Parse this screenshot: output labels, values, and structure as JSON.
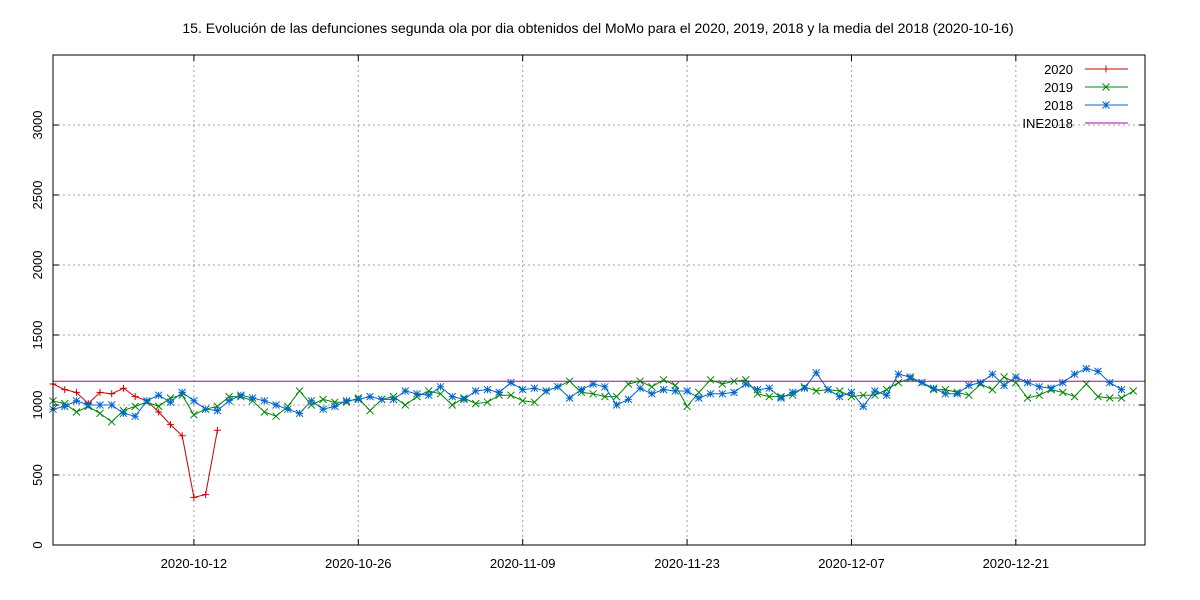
{
  "chart_data": {
    "type": "line",
    "title": "15. Evolución de las defunciones segunda ola por dia obtenidos del MoMo para el 2020, 2019, 2018 y la media del 2018 (2020-10-16)",
    "xlabel": "",
    "ylabel": "",
    "x_start": "2020-09-30",
    "x_end": "2021-01-01",
    "ylim": [
      0,
      3500
    ],
    "yticks": [
      0,
      500,
      1000,
      1500,
      2000,
      2500,
      3000
    ],
    "xtick_labels": [
      "2020-10-12",
      "2020-10-26",
      "2020-11-09",
      "2020-11-23",
      "2020-12-07",
      "2020-12-21"
    ],
    "grid": true,
    "legend_position": "top-right",
    "series": [
      {
        "name": "2020",
        "color": "#cc0000",
        "marker": "plus",
        "start_date": "2020-09-30",
        "values": [
          1150,
          1110,
          1090,
          1010,
          1090,
          1080,
          1120,
          1060,
          1030,
          950,
          860,
          780,
          340,
          360,
          820
        ]
      },
      {
        "name": "2019",
        "color": "#008800",
        "marker": "x",
        "start_date": "2020-09-30",
        "values": [
          1030,
          1010,
          950,
          990,
          940,
          880,
          960,
          990,
          1020,
          990,
          1050,
          1070,
          930,
          970,
          990,
          1060,
          1060,
          1030,
          950,
          920,
          990,
          1100,
          1000,
          1040,
          1020,
          1020,
          1050,
          960,
          1040,
          1060,
          1000,
          1060,
          1100,
          1080,
          1000,
          1050,
          1010,
          1020,
          1070,
          1070,
          1030,
          1020,
          1100,
          1130,
          1170,
          1090,
          1080,
          1060,
          1060,
          1150,
          1170,
          1130,
          1180,
          1140,
          990,
          1090,
          1180,
          1150,
          1170,
          1180,
          1080,
          1060,
          1060,
          1070,
          1130,
          1100,
          1110,
          1100,
          1060,
          1070,
          1070,
          1110,
          1160,
          1190,
          1160,
          1110,
          1110,
          1090,
          1070,
          1150,
          1110,
          1200,
          1160,
          1050,
          1070,
          1110,
          1090,
          1060,
          1150,
          1060,
          1050,
          1050,
          1100
        ]
      },
      {
        "name": "2018",
        "color": "#0066cc",
        "marker": "star",
        "start_date": "2020-09-30",
        "values": [
          970,
          990,
          1030,
          1000,
          1000,
          1000,
          940,
          920,
          1030,
          1070,
          1020,
          1090,
          1030,
          970,
          960,
          1030,
          1070,
          1050,
          1030,
          1000,
          970,
          940,
          1030,
          970,
          990,
          1030,
          1040,
          1060,
          1040,
          1040,
          1100,
          1080,
          1070,
          1130,
          1060,
          1040,
          1100,
          1110,
          1090,
          1160,
          1110,
          1120,
          1100,
          1130,
          1050,
          1110,
          1150,
          1130,
          1000,
          1040,
          1120,
          1080,
          1110,
          1100,
          1100,
          1050,
          1080,
          1080,
          1090,
          1150,
          1110,
          1120,
          1050,
          1090,
          1120,
          1230,
          1110,
          1060,
          1090,
          990,
          1100,
          1070,
          1220,
          1200,
          1160,
          1120,
          1080,
          1080,
          1140,
          1160,
          1220,
          1140,
          1200,
          1160,
          1130,
          1120,
          1160,
          1220,
          1260,
          1240,
          1160,
          1110
        ]
      },
      {
        "name": "INE2018",
        "color": "#aa00aa",
        "marker": "none",
        "constant": 1170
      }
    ]
  }
}
